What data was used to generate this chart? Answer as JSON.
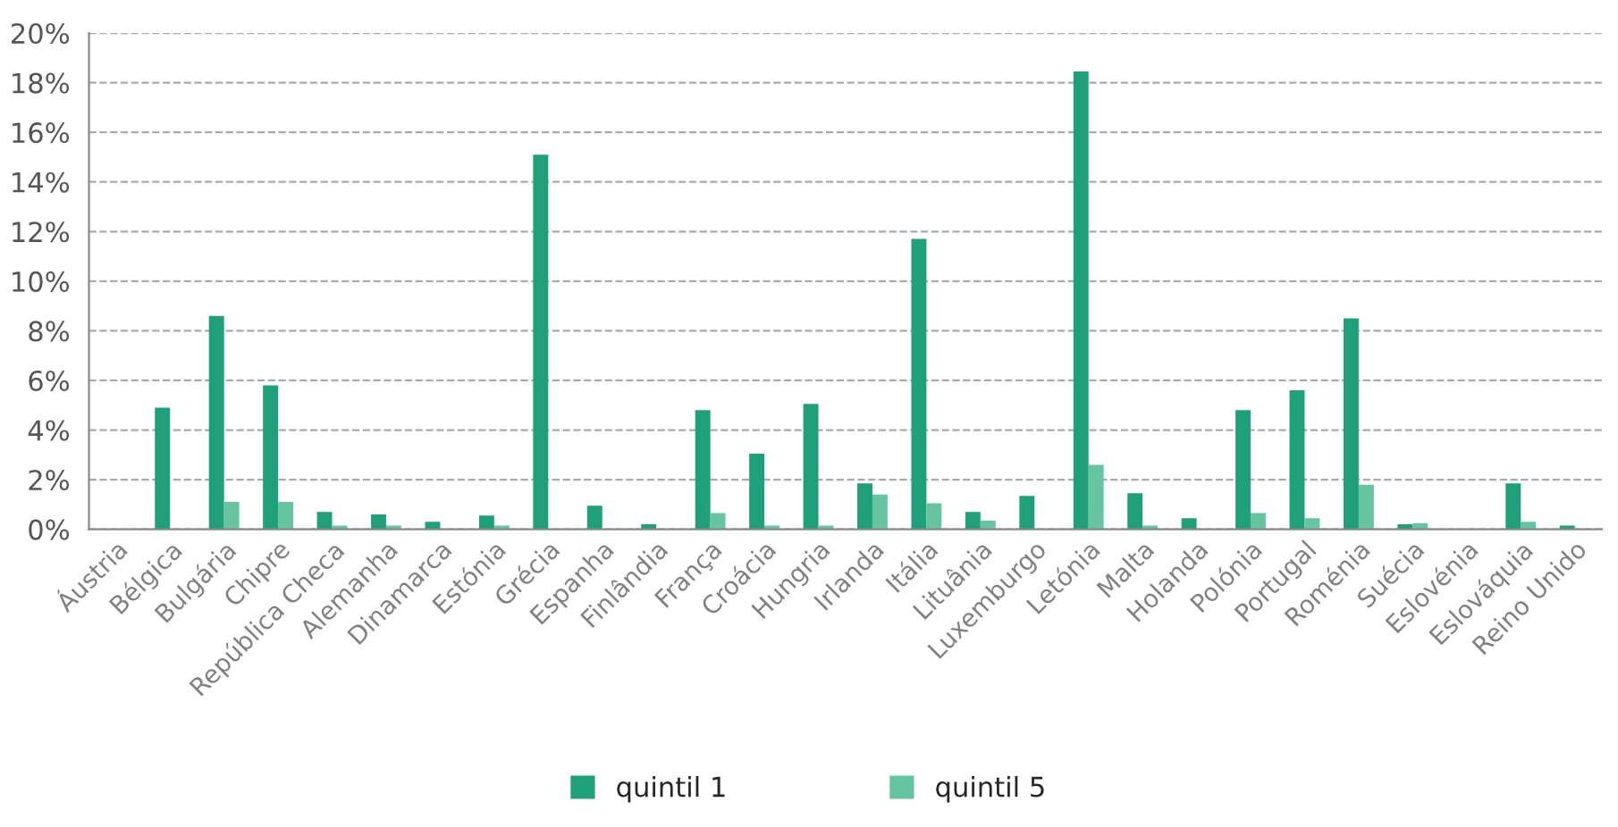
{
  "chart_data": {
    "type": "bar",
    "categories": [
      "Áustria",
      "Bélgica",
      "Bulgária",
      "Chipre",
      "República Checa",
      "Alemanha",
      "Dinamarca",
      "Estónia",
      "Grécia",
      "Espanha",
      "Finlândia",
      "França",
      "Croácia",
      "Hungria",
      "Irlanda",
      "Itália",
      "Lituânia",
      "Luxemburgo",
      "Letónia",
      "Malta",
      "Holanda",
      "Polónia",
      "Portugal",
      "Roménia",
      "Suécia",
      "Eslovénia",
      "Eslováquia",
      "Reino Unido"
    ],
    "series": [
      {
        "name": "quintil 1",
        "color": "#1fa07b",
        "values": [
          0,
          4.9,
          8.6,
          5.8,
          0.7,
          0.6,
          0.3,
          0.55,
          15.1,
          0.95,
          0.2,
          4.8,
          3.05,
          5.05,
          1.85,
          11.7,
          0.7,
          1.35,
          18.45,
          1.45,
          0.45,
          4.8,
          5.6,
          8.5,
          0.2,
          0,
          1.85,
          0.15
        ]
      },
      {
        "name": "quintil 5",
        "color": "#66c4a0",
        "values": [
          0,
          0,
          1.1,
          1.1,
          0.15,
          0.15,
          0,
          0.15,
          0,
          0,
          0,
          0.65,
          0.15,
          0.15,
          1.4,
          1.05,
          0.35,
          0,
          2.6,
          0.15,
          0,
          0.65,
          0.45,
          1.8,
          0.25,
          null,
          0.3,
          null
        ]
      }
    ],
    "ylim": [
      0,
      20
    ],
    "yticks": [
      {
        "value": 0,
        "label": "0%"
      },
      {
        "value": 2,
        "label": "2%"
      },
      {
        "value": 4,
        "label": "4%"
      },
      {
        "value": 6,
        "label": "6%"
      },
      {
        "value": 8,
        "label": "8%"
      },
      {
        "value": 10,
        "label": "10%"
      },
      {
        "value": 12,
        "label": "12%"
      },
      {
        "value": 14,
        "label": "14%"
      },
      {
        "value": 16,
        "label": "16%"
      },
      {
        "value": 18,
        "label": "18%"
      },
      {
        "value": 20,
        "label": "20%"
      }
    ],
    "grid": "y",
    "legend": "bottom"
  }
}
